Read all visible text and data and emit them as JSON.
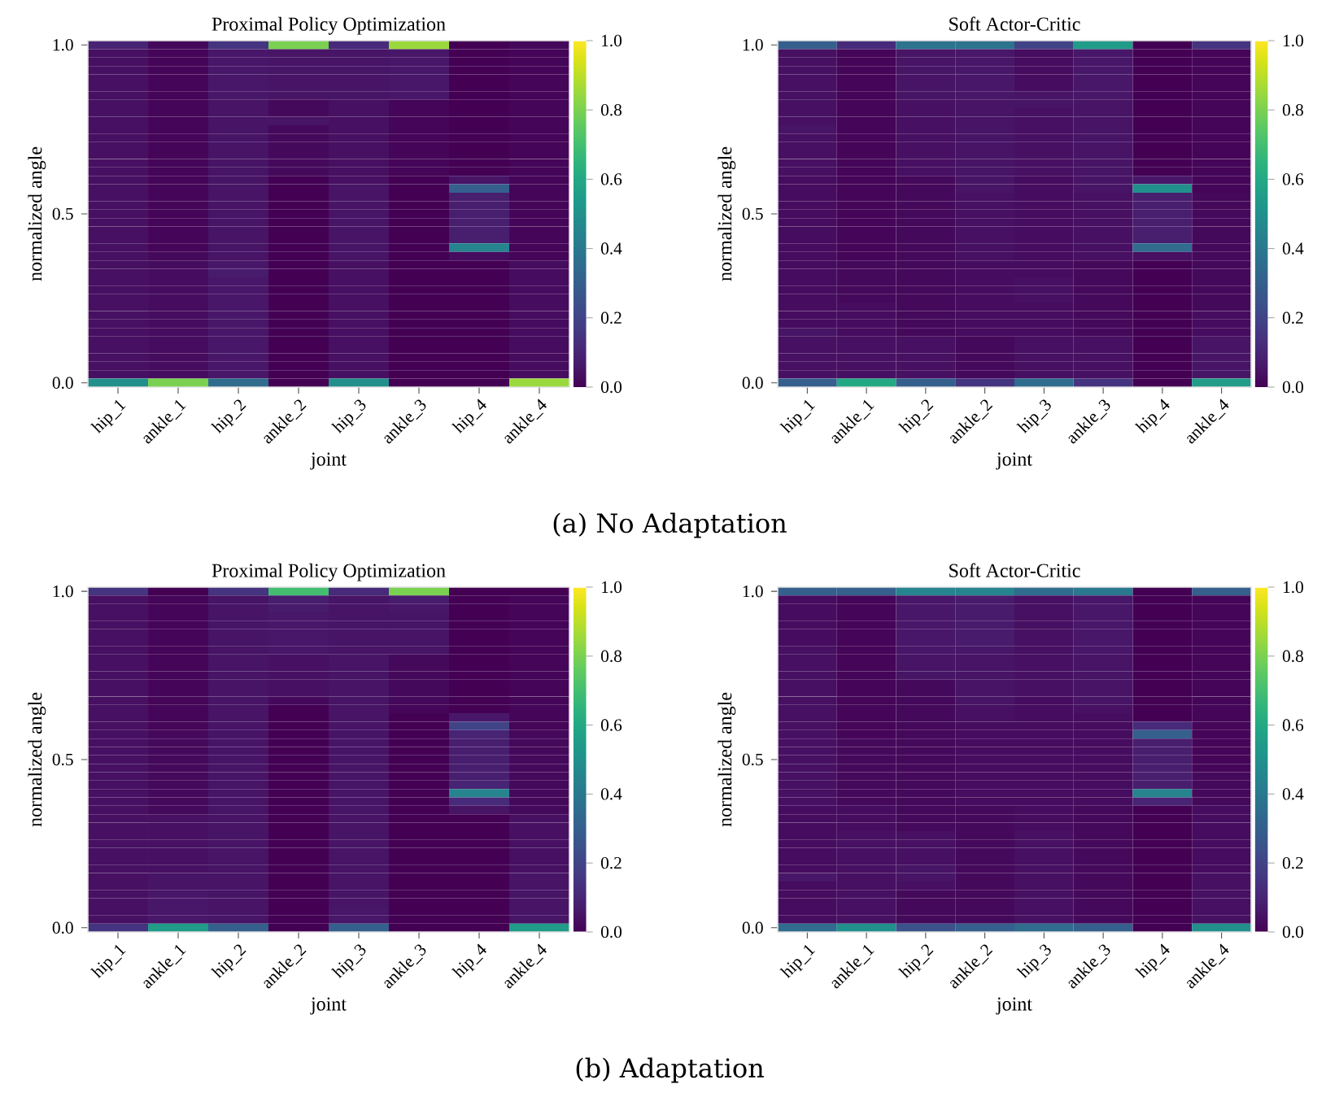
{
  "chart_data": [
    {
      "type": "heatmap",
      "title": "Proximal Policy Optimization",
      "xlabel": "joint",
      "ylabel": "normalized angle",
      "categories": [
        "hip_1",
        "ankle_1",
        "hip_2",
        "ankle_2",
        "hip_3",
        "ankle_3",
        "hip_4",
        "ankle_4"
      ],
      "ylim": [
        -0.0125,
        1.0125
      ],
      "yticks": [
        {
          "value": 0,
          "label": "0.0"
        },
        {
          "value": 0.5,
          "label": "0.5"
        },
        {
          "value": 1,
          "label": "1.0"
        }
      ],
      "clim": [
        0,
        1
      ],
      "cticks": [
        {
          "value": 0,
          "label": "0.0"
        },
        {
          "value": 0.2,
          "label": "0.2"
        },
        {
          "value": 0.4,
          "label": "0.4"
        },
        {
          "value": 0.6,
          "label": "0.6"
        },
        {
          "value": 0.8,
          "label": "0.8"
        },
        {
          "value": 1,
          "label": "1.0"
        }
      ],
      "annotations": [
        "(a) No Adaptation"
      ],
      "cells": [
        [
          0.1,
          0.02,
          0.15,
          0.8,
          0.12,
          0.85,
          0,
          0.02
        ],
        [
          0.04,
          0.01,
          0.06,
          0.05,
          0.05,
          0.06,
          0,
          0.01
        ],
        [
          0.04,
          0.01,
          0.06,
          0.05,
          0.05,
          0.06,
          0,
          0.01
        ],
        [
          0.04,
          0.01,
          0.06,
          0.05,
          0.05,
          0.06,
          0,
          0.01
        ],
        [
          0.04,
          0.01,
          0.06,
          0.05,
          0.05,
          0.06,
          0,
          0.01
        ],
        [
          0.04,
          0.01,
          0.06,
          0.05,
          0.05,
          0.06,
          0,
          0.01
        ],
        [
          0.04,
          0.01,
          0.06,
          0.05,
          0.05,
          0.06,
          0,
          0.01
        ],
        [
          0.04,
          0.01,
          0.05,
          0.02,
          0.04,
          0.01,
          0,
          0.01
        ],
        [
          0.04,
          0.01,
          0.05,
          0.02,
          0.04,
          0.01,
          0,
          0.01
        ],
        [
          0.04,
          0.01,
          0.05,
          0.05,
          0.04,
          0.01,
          0,
          0.01
        ],
        [
          0.04,
          0.01,
          0.05,
          0.02,
          0.04,
          0.01,
          0,
          0.01
        ],
        [
          0.04,
          0.01,
          0.05,
          0.02,
          0.04,
          0.01,
          0,
          0.01
        ],
        [
          0.04,
          0.01,
          0.05,
          0.02,
          0.04,
          0.01,
          0,
          0.01
        ],
        [
          0.04,
          0.01,
          0.05,
          0.02,
          0.04,
          0.01,
          0,
          0.01
        ],
        [
          0.04,
          0.01,
          0.05,
          0.02,
          0.04,
          0.01,
          0,
          0.01
        ],
        [
          0.04,
          0.01,
          0.05,
          0.02,
          0.04,
          0.01,
          0,
          0.01
        ],
        [
          0.04,
          0.01,
          0.05,
          0.0,
          0.04,
          0.0,
          0.05,
          0.01
        ],
        [
          0.04,
          0.01,
          0.05,
          0.0,
          0.05,
          0.0,
          0.3,
          0.01
        ],
        [
          0.04,
          0.01,
          0.05,
          0.0,
          0.05,
          0.0,
          0.08,
          0.01
        ],
        [
          0.04,
          0.01,
          0.05,
          0.0,
          0.05,
          0.0,
          0.08,
          0.01
        ],
        [
          0.04,
          0.01,
          0.05,
          0.0,
          0.05,
          0.0,
          0.08,
          0.01
        ],
        [
          0.04,
          0.01,
          0.05,
          0.0,
          0.05,
          0.0,
          0.08,
          0.01
        ],
        [
          0.04,
          0.01,
          0.05,
          0.0,
          0.05,
          0.0,
          0.08,
          0.01
        ],
        [
          0.04,
          0.01,
          0.05,
          0.0,
          0.05,
          0.0,
          0.08,
          0.01
        ],
        [
          0.04,
          0.01,
          0.05,
          0.0,
          0.05,
          0.0,
          0.45,
          0.01
        ],
        [
          0.04,
          0.02,
          0.05,
          0.0,
          0.05,
          0.0,
          0.03,
          0.01
        ],
        [
          0.04,
          0.03,
          0.06,
          0.0,
          0.04,
          0.0,
          0,
          0.03
        ],
        [
          0.04,
          0.03,
          0.07,
          0.0,
          0.04,
          0.0,
          0,
          0.03
        ],
        [
          0.04,
          0.03,
          0.06,
          0.0,
          0.04,
          0.0,
          0,
          0.03
        ],
        [
          0.04,
          0.03,
          0.06,
          0.0,
          0.04,
          0.0,
          0,
          0.03
        ],
        [
          0.04,
          0.03,
          0.06,
          0.0,
          0.04,
          0.0,
          0,
          0.03
        ],
        [
          0.04,
          0.03,
          0.06,
          0.0,
          0.04,
          0.0,
          0,
          0.03
        ],
        [
          0.04,
          0.03,
          0.06,
          0.0,
          0.04,
          0.0,
          0,
          0.03
        ],
        [
          0.04,
          0.03,
          0.06,
          0.0,
          0.04,
          0.0,
          0,
          0.03
        ],
        [
          0.04,
          0.03,
          0.06,
          0.0,
          0.04,
          0.0,
          0,
          0.03
        ],
        [
          0.04,
          0.03,
          0.06,
          0.0,
          0.04,
          0.0,
          0,
          0.03
        ],
        [
          0.04,
          0.03,
          0.06,
          0.0,
          0.04,
          0.0,
          0,
          0.03
        ],
        [
          0.04,
          0.03,
          0.06,
          0.0,
          0.04,
          0.0,
          0,
          0.03
        ],
        [
          0.04,
          0.03,
          0.06,
          0.0,
          0.04,
          0.0,
          0,
          0.03
        ],
        [
          0.04,
          0.03,
          0.06,
          0.0,
          0.04,
          0.0,
          0,
          0.03
        ],
        [
          0.5,
          0.8,
          0.35,
          0,
          0.5,
          0,
          0,
          0.85
        ]
      ]
    },
    {
      "type": "heatmap",
      "title": "Soft Actor-Critic",
      "xlabel": "joint",
      "ylabel": "normalized angle",
      "categories": [
        "hip_1",
        "ankle_1",
        "hip_2",
        "ankle_2",
        "hip_3",
        "ankle_3",
        "hip_4",
        "ankle_4"
      ],
      "ylim": [
        -0.0125,
        1.0125
      ],
      "yticks": [
        {
          "value": 0,
          "label": "0.0"
        },
        {
          "value": 0.5,
          "label": "0.5"
        },
        {
          "value": 1,
          "label": "1.0"
        }
      ],
      "clim": [
        0,
        1
      ],
      "cticks": [
        {
          "value": 0,
          "label": "0.0"
        },
        {
          "value": 0.2,
          "label": "0.2"
        },
        {
          "value": 0.4,
          "label": "0.4"
        },
        {
          "value": 0.6,
          "label": "0.6"
        },
        {
          "value": 0.8,
          "label": "0.8"
        },
        {
          "value": 1,
          "label": "1.0"
        }
      ],
      "cells": [
        [
          0.3,
          0.12,
          0.38,
          0.38,
          0.2,
          0.55,
          0,
          0.15
        ],
        [
          0.04,
          0.01,
          0.05,
          0.06,
          0.03,
          0.06,
          0,
          0.01
        ],
        [
          0.04,
          0.01,
          0.05,
          0.06,
          0.03,
          0.06,
          0,
          0.01
        ],
        [
          0.04,
          0.01,
          0.05,
          0.06,
          0.03,
          0.06,
          0,
          0.01
        ],
        [
          0.04,
          0.01,
          0.05,
          0.06,
          0.03,
          0.06,
          0,
          0.01
        ],
        [
          0.04,
          0.01,
          0.05,
          0.06,
          0.03,
          0.06,
          0,
          0.01
        ],
        [
          0.04,
          0.01,
          0.05,
          0.06,
          0.05,
          0.06,
          0,
          0.01
        ],
        [
          0.04,
          0.01,
          0.04,
          0.05,
          0.05,
          0.05,
          0,
          0.01
        ],
        [
          0.04,
          0.01,
          0.04,
          0.05,
          0.04,
          0.05,
          0,
          0.01
        ],
        [
          0.04,
          0.01,
          0.04,
          0.05,
          0.04,
          0.05,
          0,
          0.01
        ],
        [
          0.05,
          0.01,
          0.04,
          0.05,
          0.04,
          0.05,
          0,
          0.01
        ],
        [
          0.04,
          0.01,
          0.04,
          0.05,
          0.04,
          0.05,
          0,
          0.01
        ],
        [
          0.04,
          0.01,
          0.04,
          0.05,
          0.04,
          0.05,
          0,
          0.01
        ],
        [
          0.04,
          0.01,
          0.04,
          0.05,
          0.04,
          0.05,
          0,
          0.01
        ],
        [
          0.04,
          0.01,
          0.04,
          0.05,
          0.04,
          0.05,
          0,
          0.01
        ],
        [
          0.04,
          0.01,
          0.04,
          0.05,
          0.04,
          0.05,
          0,
          0.01
        ],
        [
          0.03,
          0.01,
          0.02,
          0.05,
          0.03,
          0.05,
          0.06,
          0.01
        ],
        [
          0.03,
          0.01,
          0.02,
          0.05,
          0.03,
          0.05,
          0.5,
          0.01
        ],
        [
          0.03,
          0.01,
          0.02,
          0.04,
          0.03,
          0.04,
          0.08,
          0.02
        ],
        [
          0.03,
          0.01,
          0.02,
          0.04,
          0.03,
          0.04,
          0.08,
          0.02
        ],
        [
          0.03,
          0.01,
          0.02,
          0.04,
          0.03,
          0.04,
          0.08,
          0.02
        ],
        [
          0.03,
          0.01,
          0.02,
          0.04,
          0.03,
          0.04,
          0.08,
          0.02
        ],
        [
          0.03,
          0.01,
          0.02,
          0.04,
          0.03,
          0.04,
          0.08,
          0.02
        ],
        [
          0.03,
          0.01,
          0.02,
          0.04,
          0.03,
          0.04,
          0.08,
          0.02
        ],
        [
          0.03,
          0.01,
          0.02,
          0.04,
          0.03,
          0.04,
          0.35,
          0.02
        ],
        [
          0.03,
          0.01,
          0.02,
          0.04,
          0.03,
          0.04,
          0.04,
          0.02
        ],
        [
          0.03,
          0.02,
          0.02,
          0.03,
          0.03,
          0.02,
          0,
          0.02
        ],
        [
          0.03,
          0.02,
          0.02,
          0.03,
          0.03,
          0.02,
          0,
          0.02
        ],
        [
          0.03,
          0.02,
          0.02,
          0.03,
          0.04,
          0.02,
          0,
          0.02
        ],
        [
          0.03,
          0.02,
          0.02,
          0.03,
          0.04,
          0.02,
          0,
          0.02
        ],
        [
          0.03,
          0.02,
          0.02,
          0.03,
          0.04,
          0.02,
          0,
          0.02
        ],
        [
          0.03,
          0.03,
          0.02,
          0.03,
          0.03,
          0.02,
          0,
          0.02
        ],
        [
          0.03,
          0.03,
          0.02,
          0.03,
          0.03,
          0.02,
          0,
          0.03
        ],
        [
          0.03,
          0.03,
          0.02,
          0.03,
          0.03,
          0.02,
          0,
          0.03
        ],
        [
          0.05,
          0.03,
          0.02,
          0.03,
          0.03,
          0.02,
          0,
          0.03
        ],
        [
          0.04,
          0.04,
          0.04,
          0.02,
          0.04,
          0.04,
          0,
          0.05
        ],
        [
          0.04,
          0.04,
          0.04,
          0.02,
          0.04,
          0.04,
          0,
          0.05
        ],
        [
          0.04,
          0.04,
          0.04,
          0.02,
          0.04,
          0.04,
          0,
          0.05
        ],
        [
          0.04,
          0.04,
          0.04,
          0.02,
          0.04,
          0.04,
          0,
          0.05
        ],
        [
          0.04,
          0.04,
          0.04,
          0.02,
          0.04,
          0.04,
          0,
          0.05
        ],
        [
          0.3,
          0.6,
          0.3,
          0.15,
          0.35,
          0.15,
          0,
          0.55
        ]
      ]
    },
    {
      "type": "heatmap",
      "title": "Proximal Policy Optimization",
      "xlabel": "joint",
      "ylabel": "normalized angle",
      "categories": [
        "hip_1",
        "ankle_1",
        "hip_2",
        "ankle_2",
        "hip_3",
        "ankle_3",
        "hip_4",
        "ankle_4"
      ],
      "ylim": [
        -0.0125,
        1.0125
      ],
      "yticks": [
        {
          "value": 0,
          "label": "0.0"
        },
        {
          "value": 0.5,
          "label": "0.5"
        },
        {
          "value": 1,
          "label": "1.0"
        }
      ],
      "clim": [
        0,
        1
      ],
      "cticks": [
        {
          "value": 0,
          "label": "0.0"
        },
        {
          "value": 0.2,
          "label": "0.2"
        },
        {
          "value": 0.4,
          "label": "0.4"
        },
        {
          "value": 0.6,
          "label": "0.6"
        },
        {
          "value": 0.8,
          "label": "0.8"
        },
        {
          "value": 1,
          "label": "1.0"
        }
      ],
      "annotations": [
        "(b) Adaptation"
      ],
      "cells": [
        [
          0.15,
          0.0,
          0.15,
          0.7,
          0.12,
          0.8,
          0,
          0
        ],
        [
          0.04,
          0.01,
          0.05,
          0.08,
          0.05,
          0.07,
          0,
          0.01
        ],
        [
          0.04,
          0.01,
          0.05,
          0.07,
          0.05,
          0.06,
          0,
          0.01
        ],
        [
          0.04,
          0.01,
          0.05,
          0.06,
          0.05,
          0.05,
          0,
          0.01
        ],
        [
          0.04,
          0.01,
          0.05,
          0.06,
          0.05,
          0.05,
          0,
          0.01
        ],
        [
          0.04,
          0.01,
          0.05,
          0.06,
          0.05,
          0.05,
          0,
          0.01
        ],
        [
          0.04,
          0.01,
          0.05,
          0.06,
          0.05,
          0.05,
          0,
          0.01
        ],
        [
          0.04,
          0.01,
          0.05,
          0.06,
          0.05,
          0.05,
          0,
          0.01
        ],
        [
          0.04,
          0.01,
          0.05,
          0.04,
          0.05,
          0.02,
          0,
          0.01
        ],
        [
          0.04,
          0.01,
          0.05,
          0.04,
          0.05,
          0.02,
          0,
          0.01
        ],
        [
          0.04,
          0.01,
          0.05,
          0.04,
          0.05,
          0.02,
          0,
          0.01
        ],
        [
          0.04,
          0.01,
          0.05,
          0.04,
          0.05,
          0.02,
          0,
          0.01
        ],
        [
          0.04,
          0.01,
          0.05,
          0.04,
          0.05,
          0.02,
          0,
          0.01
        ],
        [
          0.04,
          0.01,
          0.05,
          0.02,
          0.05,
          0.02,
          0,
          0.01
        ],
        [
          0.04,
          0.01,
          0.05,
          0.0,
          0.05,
          0.01,
          0,
          0.01
        ],
        [
          0.04,
          0.01,
          0.05,
          0.0,
          0.05,
          0.0,
          0.06,
          0.01
        ],
        [
          0.04,
          0.01,
          0.05,
          0.0,
          0.05,
          0.0,
          0.2,
          0.01
        ],
        [
          0.04,
          0.02,
          0.05,
          0.0,
          0.05,
          0.0,
          0.1,
          0.02
        ],
        [
          0.04,
          0.02,
          0.05,
          0.0,
          0.05,
          0.0,
          0.08,
          0.02
        ],
        [
          0.04,
          0.02,
          0.05,
          0.0,
          0.05,
          0.0,
          0.08,
          0.02
        ],
        [
          0.04,
          0.02,
          0.05,
          0.0,
          0.05,
          0.0,
          0.08,
          0.02
        ],
        [
          0.04,
          0.02,
          0.05,
          0.0,
          0.05,
          0.0,
          0.08,
          0.02
        ],
        [
          0.04,
          0.02,
          0.05,
          0.0,
          0.05,
          0.0,
          0.08,
          0.02
        ],
        [
          0.04,
          0.02,
          0.05,
          0.0,
          0.05,
          0.0,
          0.1,
          0.02
        ],
        [
          0.04,
          0.02,
          0.05,
          0.0,
          0.05,
          0.0,
          0.45,
          0.02
        ],
        [
          0.04,
          0.02,
          0.05,
          0.0,
          0.05,
          0.0,
          0.12,
          0.02
        ],
        [
          0.04,
          0.02,
          0.05,
          0.0,
          0.05,
          0.0,
          0.05,
          0.02
        ],
        [
          0.04,
          0.04,
          0.05,
          0.0,
          0.05,
          0.0,
          0,
          0.04
        ],
        [
          0.04,
          0.04,
          0.05,
          0.0,
          0.05,
          0.0,
          0,
          0.04
        ],
        [
          0.04,
          0.04,
          0.05,
          0.0,
          0.05,
          0.0,
          0,
          0.04
        ],
        [
          0.04,
          0.04,
          0.05,
          0.0,
          0.05,
          0.0,
          0,
          0.04
        ],
        [
          0.04,
          0.04,
          0.05,
          0.0,
          0.05,
          0.0,
          0,
          0.04
        ],
        [
          0.04,
          0.04,
          0.05,
          0.0,
          0.05,
          0.0,
          0,
          0.04
        ],
        [
          0.04,
          0.04,
          0.05,
          0.0,
          0.05,
          0.0,
          0,
          0.04
        ],
        [
          0.04,
          0.05,
          0.05,
          0.0,
          0.05,
          0.0,
          0,
          0.05
        ],
        [
          0.04,
          0.05,
          0.05,
          0.0,
          0.05,
          0.0,
          0,
          0.05
        ],
        [
          0.04,
          0.06,
          0.05,
          0.0,
          0.05,
          0.0,
          0,
          0.05
        ],
        [
          0.04,
          0.06,
          0.05,
          0.0,
          0.05,
          0.0,
          0,
          0.05
        ],
        [
          0.04,
          0.06,
          0.05,
          0.0,
          0.06,
          0.0,
          0,
          0.05
        ],
        [
          0.04,
          0.06,
          0.05,
          0.0,
          0.06,
          0.0,
          0,
          0.05
        ],
        [
          0.15,
          0.55,
          0.3,
          0,
          0.3,
          0,
          0,
          0.55
        ]
      ]
    },
    {
      "type": "heatmap",
      "title": "Soft Actor-Critic",
      "xlabel": "joint",
      "ylabel": "normalized angle",
      "categories": [
        "hip_1",
        "ankle_1",
        "hip_2",
        "ankle_2",
        "hip_3",
        "ankle_3",
        "hip_4",
        "ankle_4"
      ],
      "ylim": [
        -0.0125,
        1.0125
      ],
      "yticks": [
        {
          "value": 0,
          "label": "0.0"
        },
        {
          "value": 0.5,
          "label": "0.5"
        },
        {
          "value": 1,
          "label": "1.0"
        }
      ],
      "clim": [
        0,
        1
      ],
      "cticks": [
        {
          "value": 0,
          "label": "0.0"
        },
        {
          "value": 0.2,
          "label": "0.2"
        },
        {
          "value": 0.4,
          "label": "0.4"
        },
        {
          "value": 0.6,
          "label": "0.6"
        },
        {
          "value": 0.8,
          "label": "0.8"
        },
        {
          "value": 1,
          "label": "1.0"
        }
      ],
      "cells": [
        [
          0.3,
          0.3,
          0.45,
          0.45,
          0.35,
          0.4,
          0,
          0.3
        ],
        [
          0.03,
          0.01,
          0.06,
          0.07,
          0.04,
          0.06,
          0,
          0.01
        ],
        [
          0.03,
          0.01,
          0.06,
          0.07,
          0.04,
          0.06,
          0,
          0.01
        ],
        [
          0.03,
          0.01,
          0.06,
          0.07,
          0.04,
          0.06,
          0,
          0.01
        ],
        [
          0.03,
          0.01,
          0.06,
          0.07,
          0.04,
          0.06,
          0,
          0.01
        ],
        [
          0.03,
          0.01,
          0.06,
          0.07,
          0.04,
          0.06,
          0,
          0.01
        ],
        [
          0.03,
          0.01,
          0.06,
          0.07,
          0.04,
          0.06,
          0,
          0.01
        ],
        [
          0.04,
          0.01,
          0.06,
          0.06,
          0.04,
          0.06,
          0,
          0.01
        ],
        [
          0.04,
          0.01,
          0.05,
          0.05,
          0.04,
          0.05,
          0,
          0.01
        ],
        [
          0.04,
          0.01,
          0.05,
          0.05,
          0.04,
          0.05,
          0,
          0.01
        ],
        [
          0.04,
          0.01,
          0.05,
          0.05,
          0.04,
          0.05,
          0,
          0.01
        ],
        [
          0.04,
          0.01,
          0.02,
          0.05,
          0.04,
          0.05,
          0,
          0.01
        ],
        [
          0.04,
          0.01,
          0.02,
          0.05,
          0.04,
          0.05,
          0,
          0.01
        ],
        [
          0.04,
          0.01,
          0.02,
          0.05,
          0.03,
          0.05,
          0,
          0.01
        ],
        [
          0.04,
          0.01,
          0.02,
          0.04,
          0.03,
          0.04,
          0,
          0.01
        ],
        [
          0.04,
          0.01,
          0.02,
          0.04,
          0.03,
          0.03,
          0,
          0.01
        ],
        [
          0.04,
          0.01,
          0.02,
          0.03,
          0.03,
          0.03,
          0.12,
          0.01
        ],
        [
          0.04,
          0.01,
          0.02,
          0.03,
          0.03,
          0.03,
          0.3,
          0.01
        ],
        [
          0.04,
          0.02,
          0.02,
          0.03,
          0.03,
          0.03,
          0.08,
          0.01
        ],
        [
          0.04,
          0.02,
          0.02,
          0.03,
          0.03,
          0.03,
          0.08,
          0.01
        ],
        [
          0.04,
          0.02,
          0.02,
          0.03,
          0.03,
          0.03,
          0.08,
          0.01
        ],
        [
          0.04,
          0.02,
          0.02,
          0.03,
          0.03,
          0.03,
          0.08,
          0.01
        ],
        [
          0.04,
          0.02,
          0.02,
          0.03,
          0.03,
          0.03,
          0.08,
          0.02
        ],
        [
          0.04,
          0.02,
          0.02,
          0.03,
          0.03,
          0.03,
          0.08,
          0.02
        ],
        [
          0.04,
          0.02,
          0.02,
          0.03,
          0.03,
          0.03,
          0.45,
          0.02
        ],
        [
          0.04,
          0.02,
          0.02,
          0.03,
          0.03,
          0.03,
          0.1,
          0.02
        ],
        [
          0.03,
          0.03,
          0.02,
          0.02,
          0.03,
          0.02,
          0,
          0.03
        ],
        [
          0.03,
          0.03,
          0.02,
          0.02,
          0.03,
          0.02,
          0,
          0.03
        ],
        [
          0.03,
          0.03,
          0.02,
          0.02,
          0.03,
          0.02,
          0,
          0.03
        ],
        [
          0.03,
          0.04,
          0.04,
          0.02,
          0.04,
          0.02,
          0,
          0.03
        ],
        [
          0.03,
          0.04,
          0.04,
          0.02,
          0.04,
          0.02,
          0,
          0.03
        ],
        [
          0.03,
          0.04,
          0.04,
          0.02,
          0.04,
          0.02,
          0,
          0.03
        ],
        [
          0.03,
          0.04,
          0.04,
          0.02,
          0.04,
          0.02,
          0,
          0.03
        ],
        [
          0.03,
          0.04,
          0.05,
          0.02,
          0.04,
          0.02,
          0,
          0.03
        ],
        [
          0.06,
          0.04,
          0.05,
          0.02,
          0.04,
          0.02,
          0,
          0.04
        ],
        [
          0.03,
          0.04,
          0.04,
          0.02,
          0.04,
          0.02,
          0,
          0.04
        ],
        [
          0.03,
          0.04,
          0.02,
          0.02,
          0.04,
          0.02,
          0,
          0.04
        ],
        [
          0.03,
          0.04,
          0.02,
          0.02,
          0.04,
          0.02,
          0,
          0.04
        ],
        [
          0.03,
          0.04,
          0.02,
          0.02,
          0.04,
          0.02,
          0,
          0.04
        ],
        [
          0.03,
          0.04,
          0.02,
          0.02,
          0.04,
          0.02,
          0,
          0.04
        ],
        [
          0.35,
          0.5,
          0.25,
          0.3,
          0.35,
          0.3,
          0,
          0.5
        ]
      ]
    }
  ]
}
